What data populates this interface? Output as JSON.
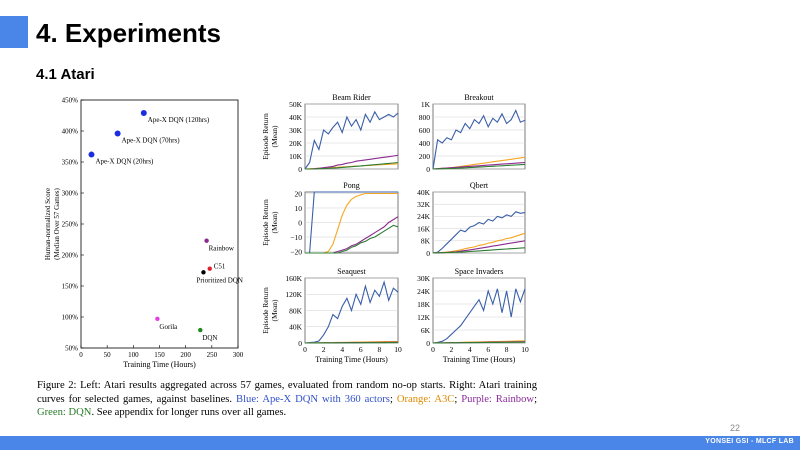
{
  "slide": {
    "title": "4. Experiments",
    "subtitle": "4.1 Atari",
    "page_number": "22",
    "footer": "YONSEI GSI - MLCF LAB",
    "accent_color": "#4a86e8"
  },
  "caption": {
    "prefix": "Figure 2:  Left:  Atari results aggregated across 57 games, evaluated from random no-op starts.  Right:  Atari training curves for selected games, against baselines. ",
    "blue": "Blue:  Ape-X DQN with 360 actors",
    "sep1": "; ",
    "orange": "Orange:  A3C",
    "sep2": "; ",
    "purple": "Purple: Rainbow",
    "sep3": "; ",
    "green": "Green: DQN",
    "suffix": ". See appendix for longer runs over all games."
  },
  "colors": {
    "apex": "#3a5fa8",
    "a3c": "#f5a623",
    "rainbow": "#8b2a8f",
    "dqn": "#2e7d32"
  },
  "chart_data": [
    {
      "type": "scatter",
      "xlabel": "Training Time (Hours)",
      "ylabel": "Human-normalized Score (Median Over 57 Games)",
      "ylabel_lines": [
        "Human-normalized Score",
        "(Median Over 57 Games)"
      ],
      "xlim": [
        0,
        300
      ],
      "ylim": [
        50,
        450
      ],
      "x_ticks": [
        0,
        50,
        100,
        150,
        200,
        250,
        300
      ],
      "y_ticks": [
        50,
        100,
        150,
        200,
        250,
        300,
        350,
        400,
        450
      ],
      "y_tick_labels": [
        "50%",
        "100%",
        "150%",
        "200%",
        "250%",
        "300%",
        "350%",
        "400%",
        "450%"
      ],
      "points": [
        {
          "label": "Ape-X DQN (120hrs)",
          "x": 120,
          "y": 429,
          "color": "#1a2fe0"
        },
        {
          "label": "Ape-X DQN (70hrs)",
          "x": 70,
          "y": 396,
          "color": "#1a2fe0"
        },
        {
          "label": "Ape-X DQN (20hrs)",
          "x": 20,
          "y": 362,
          "color": "#1a2fe0"
        },
        {
          "label": "Rainbow",
          "x": 240,
          "y": 223,
          "color": "#8b2a8f"
        },
        {
          "label": "C51",
          "x": 246,
          "y": 178,
          "color": "#e0202a"
        },
        {
          "label": "Prioritized DQN",
          "x": 234,
          "y": 172,
          "color": "#000000"
        },
        {
          "label": "Gorila",
          "x": 146,
          "y": 97,
          "color": "#e040e0"
        },
        {
          "label": "DQN",
          "x": 228,
          "y": 79,
          "color": "#1e8a1e"
        }
      ]
    },
    {
      "type": "line",
      "title": "Beam Rider",
      "ylabel_lines": [
        "Episode Return",
        "(Mean)"
      ],
      "xlim": [
        0,
        10
      ],
      "ylim": [
        0,
        50000
      ],
      "y_ticks": [
        0,
        10000,
        20000,
        30000,
        40000,
        50000
      ],
      "y_tick_labels": [
        "0",
        "10K",
        "20K",
        "30K",
        "40K",
        "50K"
      ],
      "x_ticks": [],
      "x_tick_labels": [],
      "series": [
        {
          "name": "Ape-X DQN",
          "color": "#3a5fa8",
          "y": [
            0,
            5000,
            22000,
            15000,
            30000,
            27000,
            32000,
            36000,
            28000,
            40000,
            33000,
            38000,
            30000,
            42000,
            36000,
            44000,
            38000,
            40000,
            42000,
            40000,
            43000
          ]
        },
        {
          "name": "A3C",
          "color": "#f5a623",
          "y": [
            0,
            200,
            400,
            600,
            800,
            1000,
            1200,
            1400,
            1600,
            1800,
            2000,
            2200,
            2400,
            2600,
            2800,
            3000,
            3200,
            3400,
            3600,
            3800,
            4000
          ]
        },
        {
          "name": "Rainbow",
          "color": "#8b2a8f",
          "y": [
            0,
            0,
            200,
            500,
            1000,
            1500,
            2000,
            3000,
            3500,
            4500,
            5000,
            6000,
            6500,
            7000,
            7500,
            8000,
            8500,
            9000,
            9500,
            10000,
            10500
          ]
        },
        {
          "name": "DQN",
          "color": "#2e7d32",
          "y": [
            0,
            0,
            100,
            200,
            300,
            500,
            700,
            900,
            1200,
            1500,
            1800,
            2100,
            2400,
            2700,
            3000,
            3300,
            3600,
            4000,
            4300,
            4600,
            5000
          ]
        }
      ]
    },
    {
      "type": "line",
      "title": "Breakout",
      "xlim": [
        0,
        10
      ],
      "ylim": [
        0,
        1000
      ],
      "y_ticks": [
        0,
        200,
        400,
        600,
        800,
        1000
      ],
      "y_tick_labels": [
        "0",
        "200",
        "400",
        "600",
        "800",
        "1K"
      ],
      "x_ticks": [],
      "x_tick_labels": [],
      "series": [
        {
          "name": "Ape-X DQN",
          "color": "#3a5fa8",
          "y": [
            0,
            450,
            400,
            480,
            450,
            600,
            560,
            700,
            620,
            760,
            700,
            820,
            650,
            780,
            720,
            850,
            700,
            760,
            900,
            720,
            750
          ]
        },
        {
          "name": "A3C",
          "color": "#f5a623",
          "y": [
            0,
            5,
            10,
            15,
            20,
            30,
            40,
            50,
            60,
            70,
            80,
            90,
            100,
            110,
            120,
            130,
            140,
            150,
            160,
            170,
            180
          ]
        },
        {
          "name": "Rainbow",
          "color": "#8b2a8f",
          "y": [
            0,
            5,
            10,
            15,
            20,
            25,
            30,
            35,
            40,
            45,
            50,
            55,
            60,
            65,
            70,
            75,
            80,
            85,
            90,
            95,
            100
          ]
        },
        {
          "name": "DQN",
          "color": "#2e7d32",
          "y": [
            0,
            2,
            4,
            6,
            8,
            10,
            14,
            18,
            22,
            26,
            30,
            34,
            38,
            42,
            46,
            50,
            54,
            58,
            62,
            66,
            70
          ]
        }
      ]
    },
    {
      "type": "line",
      "title": "Pong",
      "ylabel_lines": [
        "Episode Return",
        "(Mean)"
      ],
      "xlim": [
        0,
        10
      ],
      "ylim": [
        -21,
        21
      ],
      "y_ticks": [
        -20,
        -10,
        0,
        10,
        20
      ],
      "y_tick_labels": [
        "−20",
        "−10",
        "0",
        "10",
        "20"
      ],
      "x_ticks": [],
      "x_tick_labels": [],
      "series": [
        {
          "name": "Ape-X DQN",
          "color": "#3a5fa8",
          "y": [
            -21,
            -21,
            21,
            21,
            21,
            21,
            21,
            21,
            21,
            21,
            21,
            21,
            21,
            21,
            21,
            21,
            21,
            21,
            21,
            21,
            21
          ]
        },
        {
          "name": "A3C",
          "color": "#f5a623",
          "y": [
            -21,
            -21,
            -21,
            -21,
            -21,
            -20,
            -15,
            -5,
            5,
            12,
            16,
            18,
            19,
            20,
            20,
            20,
            20,
            20,
            20,
            20,
            20
          ]
        },
        {
          "name": "Rainbow",
          "color": "#8b2a8f",
          "y": [
            -21,
            -21,
            -21,
            -21,
            -21,
            -21,
            -21,
            -20,
            -19,
            -18,
            -16,
            -15,
            -13,
            -11,
            -9,
            -7,
            -5,
            -3,
            0,
            2,
            4
          ]
        },
        {
          "name": "DQN",
          "color": "#2e7d32",
          "y": [
            -21,
            -21,
            -21,
            -21,
            -21,
            -21,
            -21,
            -21,
            -20,
            -19,
            -17,
            -16,
            -14,
            -13,
            -11,
            -10,
            -8,
            -6,
            -4,
            -2,
            -3
          ]
        }
      ]
    },
    {
      "type": "line",
      "title": "Qbert",
      "xlim": [
        0,
        10
      ],
      "ylim": [
        0,
        40000
      ],
      "y_ticks": [
        0,
        8000,
        16000,
        24000,
        32000,
        40000
      ],
      "y_tick_labels": [
        "0",
        "8K",
        "16K",
        "24K",
        "32K",
        "40K"
      ],
      "x_ticks": [],
      "x_tick_labels": [],
      "series": [
        {
          "name": "Ape-X DQN",
          "color": "#3a5fa8",
          "y": [
            0,
            500,
            3000,
            6000,
            9000,
            12000,
            15000,
            14000,
            17000,
            18000,
            20000,
            19000,
            22000,
            21000,
            24000,
            23000,
            25000,
            24000,
            27000,
            26000,
            26500
          ]
        },
        {
          "name": "A3C",
          "color": "#f5a623",
          "y": [
            0,
            200,
            400,
            600,
            1000,
            1500,
            2000,
            2800,
            3500,
            4000,
            5000,
            5500,
            6500,
            7000,
            8000,
            8500,
            9500,
            10000,
            11000,
            12000,
            13000
          ]
        },
        {
          "name": "Rainbow",
          "color": "#8b2a8f",
          "y": [
            0,
            100,
            200,
            400,
            600,
            800,
            1200,
            1600,
            2000,
            2500,
            3000,
            3500,
            4000,
            4500,
            5000,
            5500,
            6000,
            6500,
            7000,
            7500,
            8000
          ]
        },
        {
          "name": "DQN",
          "color": "#2e7d32",
          "y": [
            0,
            100,
            200,
            300,
            400,
            500,
            600,
            800,
            1000,
            1200,
            1400,
            1600,
            1800,
            2000,
            2200,
            2400,
            2600,
            2800,
            3000,
            3200,
            3400
          ]
        }
      ]
    },
    {
      "type": "line",
      "title": "Seaquest",
      "ylabel_lines": [
        "Episode Return",
        "(Mean)"
      ],
      "xlabel": "Training Time (Hours)",
      "xlim": [
        0,
        10
      ],
      "ylim": [
        0,
        160000
      ],
      "y_ticks": [
        0,
        40000,
        80000,
        120000,
        160000
      ],
      "y_tick_labels": [
        "0",
        "40K",
        "80K",
        "120K",
        "160K"
      ],
      "x_ticks": [
        0,
        2,
        4,
        6,
        8,
        10
      ],
      "x_tick_labels": [
        "0",
        "2",
        "4",
        "6",
        "8",
        "10"
      ],
      "series": [
        {
          "name": "Ape-X DQN",
          "color": "#3a5fa8",
          "y": [
            0,
            1000,
            2000,
            5000,
            20000,
            40000,
            70000,
            60000,
            90000,
            110000,
            80000,
            120000,
            95000,
            140000,
            100000,
            130000,
            115000,
            150000,
            105000,
            135000,
            125000
          ]
        },
        {
          "name": "A3C",
          "color": "#f5a623",
          "y": [
            0,
            200,
            400,
            600,
            800,
            1000,
            1200,
            1400,
            1600,
            1800,
            2000,
            2200,
            2400,
            2600,
            2800,
            3000,
            3200,
            3400,
            3600,
            3800,
            4000
          ]
        },
        {
          "name": "Rainbow",
          "color": "#8b2a8f",
          "y": [
            0,
            100,
            200,
            300,
            400,
            500,
            600,
            700,
            800,
            900,
            1000,
            1100,
            1200,
            1300,
            1400,
            1500,
            1600,
            1700,
            1800,
            1900,
            2000
          ]
        },
        {
          "name": "DQN",
          "color": "#2e7d32",
          "y": [
            0,
            50,
            100,
            150,
            200,
            250,
            300,
            350,
            400,
            450,
            500,
            550,
            600,
            650,
            700,
            750,
            800,
            850,
            900,
            950,
            1000
          ]
        }
      ]
    },
    {
      "type": "line",
      "title": "Space Invaders",
      "xlabel": "Training Time (Hours)",
      "xlim": [
        0,
        10
      ],
      "ylim": [
        0,
        30000
      ],
      "y_ticks": [
        0,
        6000,
        12000,
        18000,
        24000,
        30000
      ],
      "y_tick_labels": [
        "0",
        "6K",
        "12K",
        "18K",
        "24K",
        "30K"
      ],
      "x_ticks": [
        0,
        2,
        4,
        6,
        8,
        10
      ],
      "x_tick_labels": [
        "0",
        "2",
        "4",
        "6",
        "8",
        "10"
      ],
      "series": [
        {
          "name": "Ape-X DQN",
          "color": "#3a5fa8",
          "y": [
            0,
            300,
            800,
            2000,
            4000,
            6000,
            8000,
            11000,
            14000,
            17000,
            20000,
            15000,
            24000,
            18000,
            25000,
            14000,
            24000,
            12000,
            25000,
            19000,
            25000
          ]
        },
        {
          "name": "A3C",
          "color": "#f5a623",
          "y": [
            0,
            50,
            100,
            150,
            200,
            250,
            300,
            350,
            400,
            450,
            500,
            550,
            600,
            650,
            700,
            750,
            800,
            850,
            900,
            950,
            1000
          ]
        },
        {
          "name": "Rainbow",
          "color": "#8b2a8f",
          "y": [
            0,
            30,
            60,
            90,
            120,
            150,
            180,
            210,
            240,
            270,
            300,
            330,
            360,
            390,
            420,
            450,
            480,
            510,
            540,
            570,
            600
          ]
        },
        {
          "name": "DQN",
          "color": "#2e7d32",
          "y": [
            0,
            20,
            40,
            60,
            80,
            100,
            120,
            140,
            160,
            180,
            200,
            220,
            240,
            260,
            280,
            300,
            320,
            340,
            360,
            380,
            400
          ]
        }
      ]
    }
  ]
}
